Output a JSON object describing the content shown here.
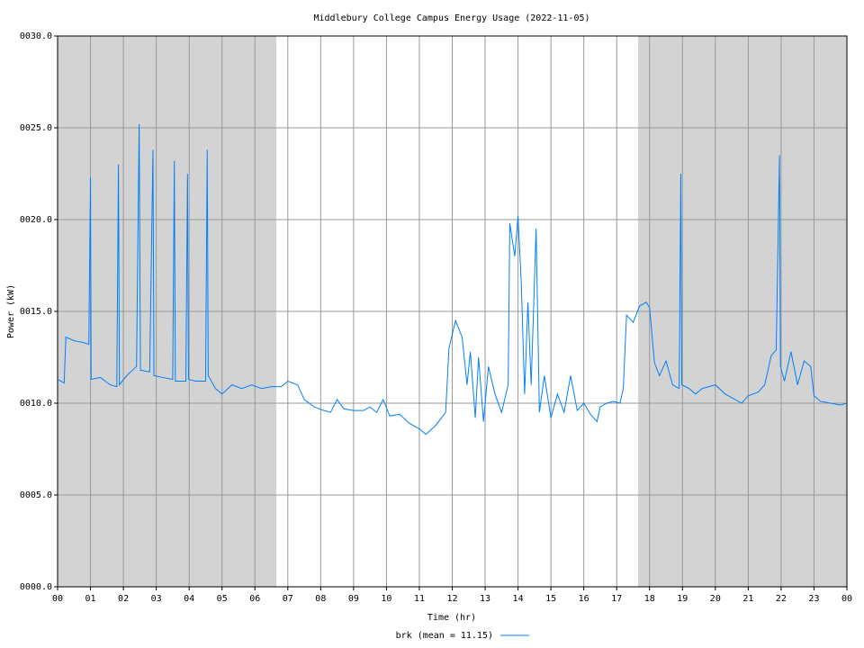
{
  "chart_data": {
    "type": "line",
    "title": "Middlebury College Campus Energy Usage (2022-11-05)",
    "x_label": "Time (hr)",
    "y_label": "Power (kW)",
    "xlim": [
      0,
      24
    ],
    "ylim": [
      0,
      30
    ],
    "xticks": [
      {
        "value": 0,
        "label": "00"
      },
      {
        "value": 1,
        "label": "01"
      },
      {
        "value": 2,
        "label": "02"
      },
      {
        "value": 3,
        "label": "03"
      },
      {
        "value": 4,
        "label": "04"
      },
      {
        "value": 5,
        "label": "05"
      },
      {
        "value": 6,
        "label": "06"
      },
      {
        "value": 7,
        "label": "07"
      },
      {
        "value": 8,
        "label": "08"
      },
      {
        "value": 9,
        "label": "09"
      },
      {
        "value": 10,
        "label": "10"
      },
      {
        "value": 11,
        "label": "11"
      },
      {
        "value": 12,
        "label": "12"
      },
      {
        "value": 13,
        "label": "13"
      },
      {
        "value": 14,
        "label": "14"
      },
      {
        "value": 15,
        "label": "15"
      },
      {
        "value": 16,
        "label": "16"
      },
      {
        "value": 17,
        "label": "17"
      },
      {
        "value": 18,
        "label": "18"
      },
      {
        "value": 19,
        "label": "19"
      },
      {
        "value": 20,
        "label": "20"
      },
      {
        "value": 21,
        "label": "21"
      },
      {
        "value": 22,
        "label": "22"
      },
      {
        "value": 23,
        "label": "23"
      },
      {
        "value": 24,
        "label": "00"
      }
    ],
    "yticks": [
      {
        "value": 0,
        "label": "0000.0"
      },
      {
        "value": 5,
        "label": "0005.0"
      },
      {
        "value": 10,
        "label": "0010.0"
      },
      {
        "value": 15,
        "label": "0015.0"
      },
      {
        "value": 20,
        "label": "0020.0"
      },
      {
        "value": 25,
        "label": "0025.0"
      },
      {
        "value": 30,
        "label": "0030.0"
      }
    ],
    "grid": true,
    "shaded_regions": [
      {
        "start": 0,
        "end": 6.65,
        "color": "#d3d3d3"
      },
      {
        "start": 17.65,
        "end": 24,
        "color": "#d3d3d3"
      }
    ],
    "legend_position": "bottom",
    "x": [
      0,
      0.2,
      0.25,
      0.5,
      0.8,
      0.95,
      1.0,
      1.02,
      1.3,
      1.6,
      1.8,
      1.85,
      1.88,
      2.1,
      2.4,
      2.48,
      2.52,
      2.8,
      2.9,
      2.93,
      3.2,
      3.5,
      3.55,
      3.58,
      3.9,
      3.95,
      3.98,
      4.2,
      4.5,
      4.55,
      4.58,
      4.8,
      5.0,
      5.3,
      5.6,
      5.9,
      6.2,
      6.5,
      6.8,
      7.0,
      7.3,
      7.5,
      7.8,
      8.1,
      8.3,
      8.5,
      8.7,
      9.0,
      9.3,
      9.5,
      9.7,
      9.9,
      10.1,
      10.4,
      10.7,
      11.0,
      11.2,
      11.5,
      11.8,
      11.9,
      12.1,
      12.3,
      12.45,
      12.55,
      12.7,
      12.8,
      12.95,
      13.1,
      13.3,
      13.5,
      13.7,
      13.75,
      13.9,
      14.0,
      14.1,
      14.2,
      14.3,
      14.4,
      14.55,
      14.65,
      14.8,
      15.0,
      15.2,
      15.4,
      15.6,
      15.8,
      16.0,
      16.2,
      16.4,
      16.5,
      16.7,
      16.9,
      17.1,
      17.2,
      17.3,
      17.5,
      17.7,
      17.9,
      18.0,
      18.15,
      18.3,
      18.5,
      18.7,
      18.9,
      18.95,
      18.98,
      19.2,
      19.4,
      19.6,
      19.8,
      20.0,
      20.3,
      20.6,
      20.8,
      21.0,
      21.3,
      21.5,
      21.7,
      21.85,
      21.95,
      21.98,
      22.1,
      22.3,
      22.5,
      22.7,
      22.9,
      23.0,
      23.2,
      23.5,
      23.8,
      24.0
    ],
    "series": [
      {
        "name": "brk (mean = 11.15)",
        "color": "#0080ff",
        "values": [
          11.3,
          11.1,
          13.6,
          13.4,
          13.3,
          13.2,
          22.3,
          11.3,
          11.4,
          11.0,
          10.9,
          23.0,
          11.0,
          11.5,
          12.0,
          25.2,
          11.8,
          11.7,
          23.8,
          11.5,
          11.4,
          11.3,
          23.2,
          11.2,
          11.2,
          22.5,
          11.3,
          11.2,
          11.2,
          23.8,
          11.5,
          10.8,
          10.5,
          11.0,
          10.8,
          11.0,
          10.8,
          10.9,
          10.9,
          11.2,
          11.0,
          10.2,
          9.8,
          9.6,
          9.5,
          10.2,
          9.7,
          9.6,
          9.6,
          9.8,
          9.5,
          10.2,
          9.3,
          9.4,
          8.9,
          8.6,
          8.3,
          8.8,
          9.5,
          13.0,
          14.5,
          13.6,
          11.0,
          12.8,
          9.2,
          12.5,
          9.0,
          12.0,
          10.5,
          9.5,
          11.0,
          19.8,
          18.0,
          20.2,
          16.5,
          10.5,
          15.5,
          11.0,
          19.5,
          9.5,
          11.5,
          9.2,
          10.5,
          9.5,
          11.5,
          9.6,
          10.0,
          9.4,
          9.0,
          9.8,
          10.0,
          10.1,
          10.0,
          10.8,
          14.8,
          14.4,
          15.3,
          15.5,
          15.2,
          12.2,
          11.5,
          12.3,
          11.0,
          10.8,
          22.5,
          11.0,
          10.8,
          10.5,
          10.8,
          10.9,
          11.0,
          10.5,
          10.2,
          10.0,
          10.4,
          10.6,
          11.0,
          12.6,
          12.9,
          23.5,
          12.0,
          11.2,
          12.8,
          11.0,
          12.3,
          12.0,
          10.4,
          10.1,
          10.0,
          9.9,
          10.0
        ]
      }
    ]
  }
}
